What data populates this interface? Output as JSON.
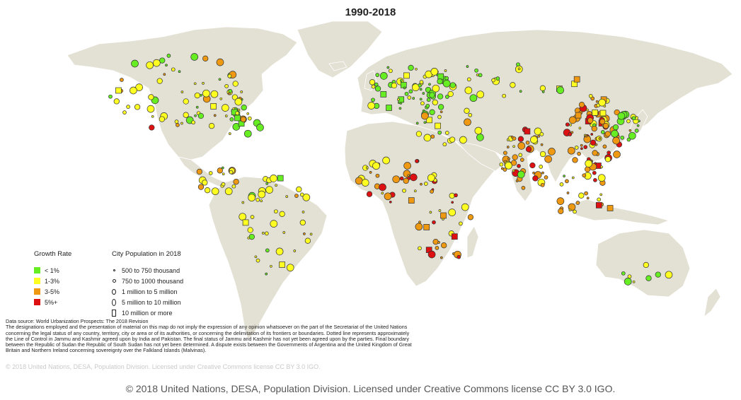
{
  "title": "1990-2018",
  "legend": {
    "growth_heading": "Growth Rate",
    "growth_classes": [
      {
        "label": "< 1%",
        "color": "#66ee22"
      },
      {
        "label": "1-3%",
        "color": "#ffff22"
      },
      {
        "label": "3-5%",
        "color": "#ee9911"
      },
      {
        "label": "5%+",
        "color": "#dd1111"
      }
    ],
    "size_heading": "City Population in 2018",
    "size_classes": [
      {
        "label": "500 to 750 thousand",
        "shape": "circle",
        "level": 1
      },
      {
        "label": "750 to 1000 thousand",
        "shape": "circle",
        "level": 2
      },
      {
        "label": "1 million to 5 million",
        "shape": "circle",
        "level": 3
      },
      {
        "label": "5 million to 10 million",
        "shape": "circle",
        "level": 4
      },
      {
        "label": "10 million or more",
        "shape": "square",
        "level": 5
      }
    ]
  },
  "notes": {
    "source": "Data source: World Urbanization Prospects: The 2018 Revision",
    "disclaimer": "The designations employed and the presentation of material on this map do not imply the expression of any opinion whatsoever on the part of the Secretariat of the United Nations concerning the legal status of any country, territory, city or area or of its authorities, or concerning the delimitation of its frontiers or boundaries. Dotted line represents approximately the Line of Control in Jammu and Kashmir agreed upon by India and Pakistan. The final status of Jammu and Kashmir has not yet been agreed upon by the parties. Final boundary between the Republic of Sudan the Republic of South Sudan has not yet been determined. A dispute exists between the Governments of Argentina and the United Kingdom of Great Britain and Northern Ireland concerning sovereignty over the Falkland Islands (Malvinas)."
  },
  "inner_copyright": "© 2018 United Nations, DESA, Population Division. Licensed under Creative Commons license CC BY 3.0 IGO.",
  "copyright": "© 2018 United Nations, DESA, Population Division. Licensed under Creative Commons license CC BY 3.0 IGO.",
  "colors": {
    "land": "#e3e0d4",
    "border": "#ffffff",
    "ocean": "#ffffff"
  }
}
